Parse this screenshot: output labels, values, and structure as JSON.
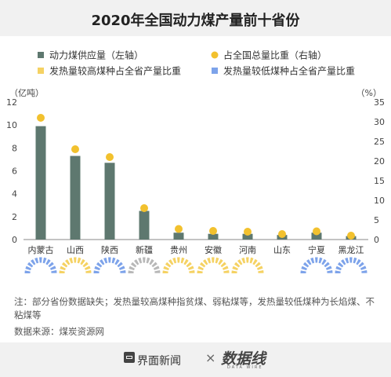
{
  "header": {
    "title": "2020年全国动力煤产量前十省份"
  },
  "legend": {
    "supply": "动力煤供应量（左轴）",
    "share": "占全国总量比重（右轴）",
    "high_heat": "发热量较高煤种占全省产量比重",
    "low_heat": "发热量较低煤种占全省产量比重"
  },
  "colors": {
    "bar": "#5e786f",
    "dot": "#f2c12e",
    "high": "#f5d263",
    "low": "#7da3ea",
    "gray": "#b8b8b8"
  },
  "chart_data": {
    "type": "bar",
    "categories": [
      "内蒙古",
      "山西",
      "陕西",
      "新疆",
      "贵州",
      "安徽",
      "河南",
      "山东",
      "宁夏",
      "黑龙江"
    ],
    "series": [
      {
        "name": "动力煤供应量（左轴）",
        "axis": "left",
        "values": [
          9.9,
          7.3,
          6.7,
          2.5,
          0.6,
          0.5,
          0.5,
          0.4,
          0.6,
          0.3
        ]
      },
      {
        "name": "占全国总量比重（右轴）",
        "axis": "right",
        "values": [
          31.0,
          23.0,
          21.0,
          8.0,
          2.7,
          2.2,
          2.0,
          1.4,
          2.1,
          1.0
        ]
      }
    ],
    "mix_rings": [
      {
        "kind": "low"
      },
      {
        "kind": "high"
      },
      {
        "kind": "low"
      },
      {
        "kind": "gray"
      },
      {
        "kind": "high"
      },
      {
        "kind": "high"
      },
      {
        "kind": "high"
      },
      {
        "kind": "none"
      },
      {
        "kind": "low"
      },
      {
        "kind": "low"
      }
    ],
    "left_unit": "（亿吨）",
    "right_unit": "（%）",
    "ylim_left": [
      0,
      12
    ],
    "ylim_right": [
      0,
      35
    ],
    "yticks_left": [
      0,
      2,
      4,
      6,
      8,
      10,
      12
    ],
    "yticks_right": [
      0,
      5,
      10,
      15,
      20,
      25,
      30,
      35
    ],
    "grid": false
  },
  "note": "注：部分省份数据缺失；发热量较高煤种指贫煤、弱粘煤等，发热量较低煤种为长焰煤、不粘煤等",
  "source": "数据来源：煤炭资源网",
  "footer": {
    "brand1": "界面新闻",
    "times": "×",
    "brand2": "数据线",
    "brand2_sub": "DATA WIRE"
  }
}
